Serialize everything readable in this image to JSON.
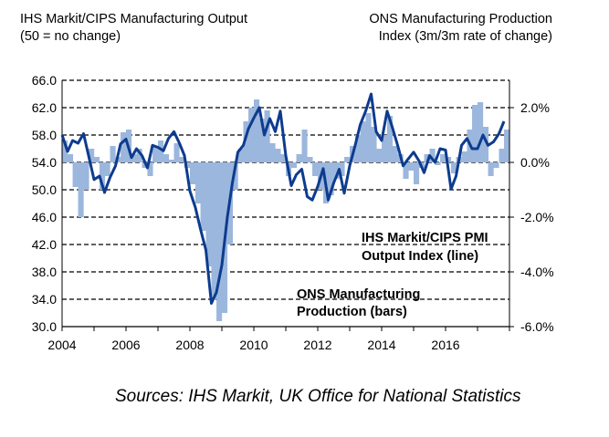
{
  "header": {
    "left_line1": "IHS Markit/CIPS Manufacturing Output",
    "left_line2": "(50 = no change)",
    "right_line1": "ONS Manufacturing Production",
    "right_line2": "Index (3m/3m rate of change)"
  },
  "source": "Sources: IHS Markit, UK Office for National Statistics",
  "chart_data": {
    "type": "line+bar",
    "x_ticks": [
      "2004",
      "2006",
      "2008",
      "2010",
      "2012",
      "2014",
      "2016"
    ],
    "x_range": [
      2004.0,
      2018.0
    ],
    "left_axis": {
      "range": [
        30.0,
        66.0
      ],
      "ticks": [
        "30.0",
        "34.0",
        "38.0",
        "42.0",
        "46.0",
        "50.0",
        "54.0",
        "58.0",
        "62.0",
        "66.0"
      ]
    },
    "right_axis": {
      "range": [
        -6.0,
        3.0
      ],
      "ticks": [
        "-6.0%",
        "-4.0%",
        "-2.0%",
        "0.0%",
        "2.0%"
      ]
    },
    "grid": "horizontal dashed",
    "colors": {
      "line": "#0d3b8e",
      "bars": "#9cb7dd",
      "grid": "#000000"
    },
    "annotations": {
      "line_label": [
        "IHS Markit/CIPS PMI",
        "Output Index (line)"
      ],
      "bar_label": [
        "ONS Manufacturing",
        "Production (bars)"
      ]
    },
    "series": [
      {
        "name": "IHS Markit/CIPS PMI Output Index (line)",
        "axis": "left",
        "x": [
          2004.0,
          2004.17,
          2004.33,
          2004.5,
          2004.67,
          2004.83,
          2005.0,
          2005.17,
          2005.33,
          2005.5,
          2005.67,
          2005.83,
          2006.0,
          2006.17,
          2006.33,
          2006.5,
          2006.67,
          2006.83,
          2007.0,
          2007.17,
          2007.33,
          2007.5,
          2007.67,
          2007.83,
          2008.0,
          2008.17,
          2008.33,
          2008.5,
          2008.67,
          2008.83,
          2009.0,
          2009.17,
          2009.33,
          2009.5,
          2009.67,
          2009.83,
          2010.0,
          2010.17,
          2010.33,
          2010.5,
          2010.67,
          2010.83,
          2011.0,
          2011.17,
          2011.33,
          2011.5,
          2011.67,
          2011.83,
          2012.0,
          2012.17,
          2012.33,
          2012.5,
          2012.67,
          2012.83,
          2013.0,
          2013.17,
          2013.33,
          2013.5,
          2013.67,
          2013.83,
          2014.0,
          2014.17,
          2014.33,
          2014.5,
          2014.67,
          2014.83,
          2015.0,
          2015.17,
          2015.33,
          2015.5,
          2015.67,
          2015.83,
          2016.0,
          2016.17,
          2016.33,
          2016.5,
          2016.67,
          2016.83,
          2017.0,
          2017.17,
          2017.33,
          2017.5,
          2017.67,
          2017.83
        ],
        "values": [
          58.0,
          55.6,
          57.2,
          56.8,
          58.2,
          55.0,
          51.5,
          52.0,
          49.6,
          51.8,
          53.5,
          56.7,
          57.4,
          54.7,
          56.0,
          55.0,
          53.2,
          56.5,
          56.2,
          55.7,
          57.5,
          58.5,
          56.8,
          55.0,
          49.8,
          47.4,
          44.3,
          41.2,
          33.4,
          35.0,
          39.0,
          46.0,
          51.0,
          55.5,
          56.5,
          58.9,
          60.5,
          62.0,
          58.0,
          60.4,
          58.5,
          61.5,
          55.0,
          50.6,
          52.2,
          53.0,
          49.0,
          48.5,
          50.5,
          53.1,
          48.5,
          51.0,
          53.0,
          49.5,
          53.5,
          56.5,
          59.5,
          61.5,
          64.0,
          58.5,
          57.2,
          61.5,
          59.2,
          56.5,
          53.5,
          54.5,
          55.5,
          54.2,
          52.5,
          55.0,
          54.0,
          56.0,
          55.8,
          50.1,
          52.0,
          56.5,
          57.5,
          56.0,
          56.0,
          58.0,
          56.5,
          57.0,
          58.2,
          60.0
        ]
      },
      {
        "name": "ONS Manufacturing Production (bars)",
        "axis": "right",
        "x": [
          2004.0,
          2004.17,
          2004.33,
          2004.5,
          2004.67,
          2004.83,
          2005.0,
          2005.17,
          2005.33,
          2005.5,
          2005.67,
          2005.83,
          2006.0,
          2006.17,
          2006.33,
          2006.5,
          2006.67,
          2006.83,
          2007.0,
          2007.17,
          2007.33,
          2007.5,
          2007.67,
          2007.83,
          2008.0,
          2008.17,
          2008.33,
          2008.5,
          2008.67,
          2008.83,
          2009.0,
          2009.17,
          2009.33,
          2009.5,
          2009.67,
          2009.83,
          2010.0,
          2010.17,
          2010.33,
          2010.5,
          2010.67,
          2010.83,
          2011.0,
          2011.17,
          2011.33,
          2011.5,
          2011.67,
          2011.83,
          2012.0,
          2012.17,
          2012.33,
          2012.5,
          2012.67,
          2012.83,
          2013.0,
          2013.17,
          2013.33,
          2013.5,
          2013.67,
          2013.83,
          2014.0,
          2014.17,
          2014.33,
          2014.5,
          2014.67,
          2014.83,
          2015.0,
          2015.17,
          2015.33,
          2015.5,
          2015.67,
          2015.83,
          2016.0,
          2016.17,
          2016.33,
          2016.5,
          2016.67,
          2016.83,
          2017.0,
          2017.17,
          2017.33,
          2017.5,
          2017.67,
          2017.83
        ],
        "values": [
          0.8,
          0.3,
          -0.9,
          -2.0,
          -1.0,
          0.5,
          0.2,
          -1.0,
          -0.5,
          0.6,
          0.2,
          1.1,
          1.2,
          0.3,
          0.5,
          -0.2,
          -0.5,
          0.6,
          0.8,
          0.3,
          0.1,
          0.7,
          0.2,
          -0.2,
          -0.8,
          -1.5,
          -2.5,
          -3.8,
          -5.0,
          -5.8,
          -5.5,
          -3.0,
          -1.0,
          0.5,
          1.5,
          2.0,
          2.3,
          1.6,
          1.9,
          0.7,
          0.5,
          0.3,
          -0.5,
          -0.2,
          0.3,
          1.2,
          0.2,
          -0.5,
          -1.0,
          -1.5,
          -1.2,
          -0.6,
          -0.5,
          0.2,
          0.6,
          1.0,
          1.5,
          1.8,
          1.3,
          0.5,
          1.0,
          1.7,
          0.6,
          0.3,
          -0.6,
          -0.3,
          -0.8,
          -0.2,
          0.3,
          0.5,
          -0.1,
          0.3,
          0.2,
          -0.4,
          0.2,
          0.4,
          1.2,
          2.1,
          2.2,
          1.3,
          -0.5,
          -0.2,
          0.5,
          1.2
        ]
      }
    ]
  }
}
